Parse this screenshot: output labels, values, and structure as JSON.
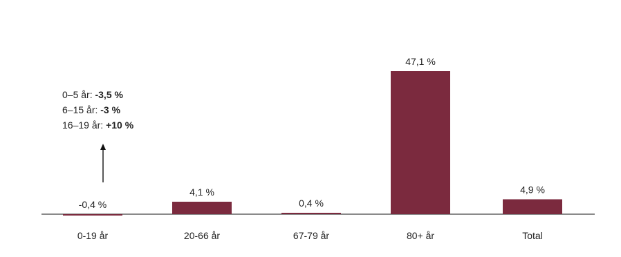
{
  "chart_data": {
    "type": "bar",
    "categories": [
      "0-19 år",
      "20-66 år",
      "67-79 år",
      "80+ år",
      "Total"
    ],
    "values": [
      -0.4,
      4.1,
      0.4,
      47.1,
      4.9
    ],
    "value_labels": [
      "-0,4 %",
      "4,1 %",
      "0,4 %",
      "47,1 %",
      "4,9 %"
    ],
    "title": "",
    "xlabel": "",
    "ylabel": "",
    "ylim": [
      -1,
      50
    ],
    "grid": false,
    "legend": "none",
    "bar_color": "#7b2a3e",
    "annotation": {
      "lines": [
        {
          "label": "0–5 år:",
          "value": "-3,5 %"
        },
        {
          "label": "6–15 år:",
          "value": "-3 %"
        },
        {
          "label": "16–19 år:",
          "value": "+10 %"
        }
      ]
    }
  }
}
